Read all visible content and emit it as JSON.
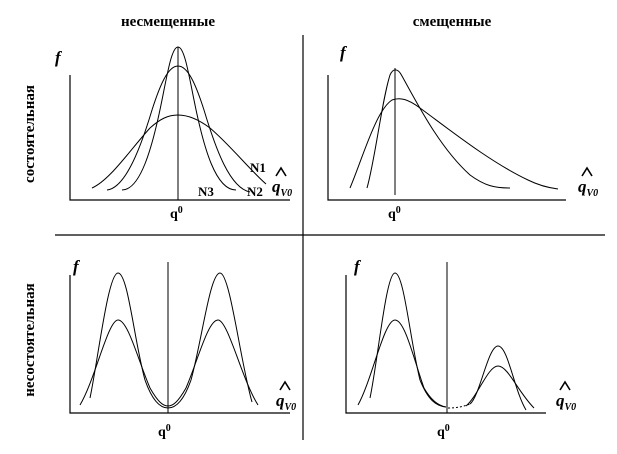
{
  "headers": {
    "col_left": "несмещенные",
    "col_right": "смещенные",
    "row_top": "состоятельная",
    "row_bottom": "несостоятельная"
  },
  "panels": {
    "top_left": {
      "f_label": "f",
      "q0_label": "q",
      "q0_sup": "0",
      "estimator_label": "q",
      "estimator_sub": "V0",
      "curve_labels": [
        "N1",
        "N2",
        "N3"
      ]
    },
    "top_right": {
      "f_label": "f",
      "q0_label": "q",
      "q0_sup": "0",
      "estimator_label": "q",
      "estimator_sub": "V0"
    },
    "bottom_left": {
      "f_label": "f",
      "q0_label": "q",
      "q0_sup": "0",
      "estimator_label": "q",
      "estimator_sub": "V0"
    },
    "bottom_right": {
      "f_label": "f",
      "q0_label": "q",
      "q0_sup": "0",
      "estimator_label": "q",
      "estimator_sub": "V0"
    }
  },
  "colors": {
    "ink": "#000000",
    "background": "#ffffff"
  }
}
